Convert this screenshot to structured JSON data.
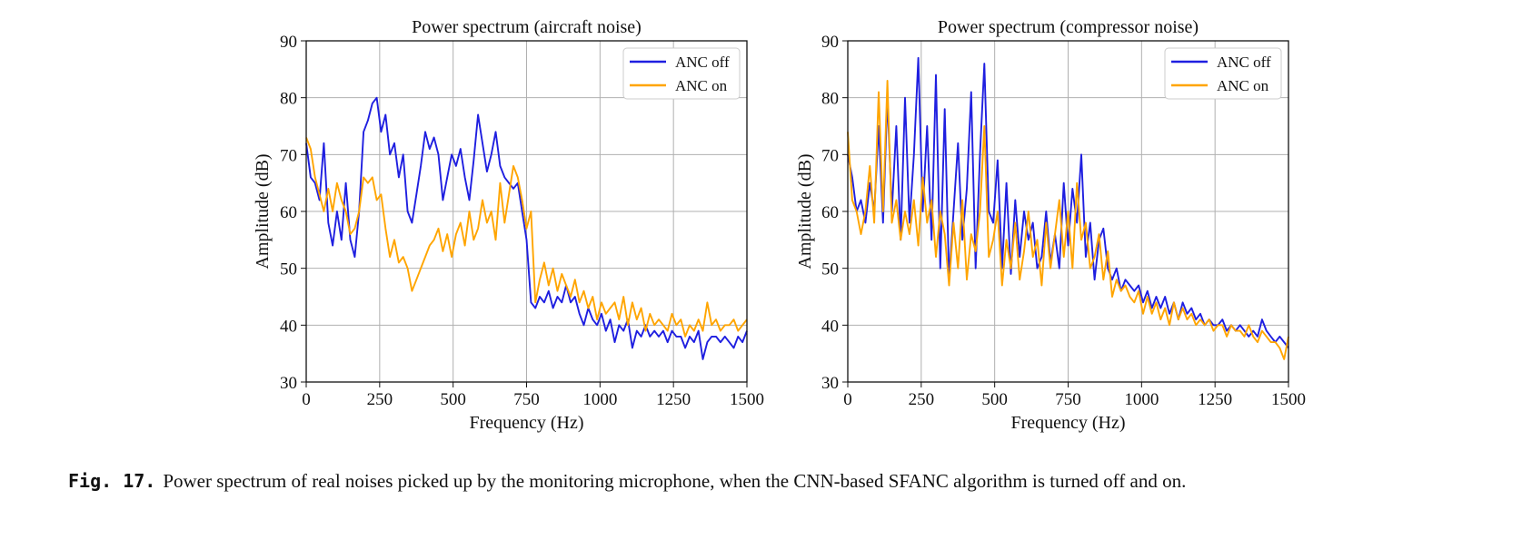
{
  "chart_data": [
    {
      "type": "line",
      "title": "Power spectrum (aircraft noise)",
      "xlabel": "Frequency (Hz)",
      "ylabel": "Amplitude (dB)",
      "xlim": [
        0,
        1500
      ],
      "ylim": [
        30,
        90
      ],
      "xticks": [
        "0",
        "250",
        "500",
        "750",
        "1000",
        "1250",
        "1500"
      ],
      "yticks": [
        "30",
        "40",
        "50",
        "60",
        "70",
        "80",
        "90"
      ],
      "grid": true,
      "legend": "top-right",
      "series": [
        {
          "name": "ANC off",
          "color": "#1f1fe0",
          "x": [
            0,
            15,
            30,
            45,
            60,
            75,
            90,
            105,
            120,
            135,
            150,
            165,
            180,
            195,
            210,
            225,
            240,
            255,
            270,
            285,
            300,
            315,
            330,
            345,
            360,
            375,
            390,
            405,
            420,
            435,
            450,
            465,
            480,
            495,
            510,
            525,
            540,
            555,
            570,
            585,
            600,
            615,
            630,
            645,
            660,
            675,
            690,
            705,
            720,
            735,
            750,
            765,
            780,
            795,
            810,
            825,
            840,
            855,
            870,
            885,
            900,
            915,
            930,
            945,
            960,
            975,
            990,
            1005,
            1020,
            1035,
            1050,
            1065,
            1080,
            1095,
            1110,
            1125,
            1140,
            1155,
            1170,
            1185,
            1200,
            1215,
            1230,
            1245,
            1260,
            1275,
            1290,
            1305,
            1320,
            1335,
            1350,
            1365,
            1380,
            1395,
            1410,
            1425,
            1440,
            1455,
            1470,
            1485,
            1500
          ],
          "values": [
            72,
            66,
            65,
            62,
            72,
            58,
            54,
            60,
            55,
            65,
            55,
            52,
            60,
            74,
            76,
            79,
            80,
            74,
            77,
            70,
            72,
            66,
            70,
            60,
            58,
            63,
            68,
            74,
            71,
            73,
            70,
            62,
            66,
            70,
            68,
            71,
            66,
            62,
            69,
            77,
            72,
            67,
            70,
            74,
            68,
            66,
            65,
            64,
            65,
            60,
            55,
            44,
            43,
            45,
            44,
            46,
            43,
            45,
            44,
            47,
            44,
            45,
            42,
            40,
            43,
            41,
            40,
            42,
            39,
            41,
            37,
            40,
            39,
            41,
            36,
            39,
            38,
            40,
            38,
            39,
            38,
            39,
            37,
            39,
            38,
            38,
            36,
            38,
            37,
            39,
            34,
            37,
            38,
            38,
            37,
            38,
            37,
            36,
            38,
            37,
            39
          ]
        },
        {
          "name": "ANC on",
          "color": "#ffa500",
          "x": [
            0,
            15,
            30,
            45,
            60,
            75,
            90,
            105,
            120,
            135,
            150,
            165,
            180,
            195,
            210,
            225,
            240,
            255,
            270,
            285,
            300,
            315,
            330,
            345,
            360,
            375,
            390,
            405,
            420,
            435,
            450,
            465,
            480,
            495,
            510,
            525,
            540,
            555,
            570,
            585,
            600,
            615,
            630,
            645,
            660,
            675,
            690,
            705,
            720,
            735,
            750,
            765,
            780,
            795,
            810,
            825,
            840,
            855,
            870,
            885,
            900,
            915,
            930,
            945,
            960,
            975,
            990,
            1005,
            1020,
            1035,
            1050,
            1065,
            1080,
            1095,
            1110,
            1125,
            1140,
            1155,
            1170,
            1185,
            1200,
            1215,
            1230,
            1245,
            1260,
            1275,
            1290,
            1305,
            1320,
            1335,
            1350,
            1365,
            1380,
            1395,
            1410,
            1425,
            1440,
            1455,
            1470,
            1485,
            1500
          ],
          "values": [
            73,
            71,
            66,
            63,
            60,
            64,
            60,
            65,
            62,
            60,
            56,
            57,
            60,
            66,
            65,
            66,
            62,
            63,
            57,
            52,
            55,
            51,
            52,
            50,
            46,
            48,
            50,
            52,
            54,
            55,
            57,
            53,
            56,
            52,
            56,
            58,
            54,
            60,
            55,
            57,
            62,
            58,
            60,
            55,
            65,
            58,
            63,
            68,
            66,
            62,
            57,
            60,
            44,
            48,
            51,
            47,
            50,
            46,
            49,
            47,
            45,
            48,
            44,
            46,
            43,
            45,
            41,
            44,
            42,
            43,
            44,
            41,
            45,
            40,
            44,
            41,
            43,
            39,
            42,
            40,
            41,
            40,
            39,
            42,
            40,
            41,
            38,
            40,
            39,
            41,
            39,
            44,
            40,
            41,
            39,
            40,
            40,
            41,
            39,
            40,
            41
          ]
        }
      ]
    },
    {
      "type": "line",
      "title": "Power spectrum (compressor noise)",
      "xlabel": "Frequency (Hz)",
      "ylabel": "Amplitude (dB)",
      "xlim": [
        0,
        1500
      ],
      "ylim": [
        30,
        90
      ],
      "xticks": [
        "0",
        "250",
        "500",
        "750",
        "1000",
        "1250",
        "1500"
      ],
      "yticks": [
        "30",
        "40",
        "50",
        "60",
        "70",
        "80",
        "90"
      ],
      "grid": true,
      "legend": "top-right",
      "series": [
        {
          "name": "ANC off",
          "color": "#1f1fe0",
          "x": [
            0,
            15,
            30,
            45,
            60,
            75,
            90,
            105,
            120,
            135,
            150,
            165,
            180,
            195,
            210,
            225,
            240,
            255,
            270,
            285,
            300,
            315,
            330,
            345,
            360,
            375,
            390,
            405,
            420,
            435,
            450,
            465,
            480,
            495,
            510,
            525,
            540,
            555,
            570,
            585,
            600,
            615,
            630,
            645,
            660,
            675,
            690,
            705,
            720,
            735,
            750,
            765,
            780,
            795,
            810,
            825,
            840,
            855,
            870,
            885,
            900,
            915,
            930,
            945,
            960,
            975,
            990,
            1005,
            1020,
            1035,
            1050,
            1065,
            1080,
            1095,
            1110,
            1125,
            1140,
            1155,
            1170,
            1185,
            1200,
            1215,
            1230,
            1245,
            1260,
            1275,
            1290,
            1305,
            1320,
            1335,
            1350,
            1365,
            1380,
            1395,
            1410,
            1425,
            1440,
            1455,
            1470,
            1485,
            1500
          ],
          "values": [
            70,
            66,
            60,
            62,
            58,
            65,
            60,
            75,
            58,
            80,
            60,
            75,
            55,
            80,
            58,
            70,
            87,
            60,
            75,
            55,
            84,
            50,
            78,
            48,
            60,
            72,
            55,
            64,
            81,
            50,
            70,
            86,
            60,
            58,
            69,
            50,
            65,
            49,
            62,
            52,
            60,
            55,
            58,
            50,
            52,
            60,
            51,
            56,
            50,
            65,
            54,
            64,
            58,
            70,
            52,
            58,
            48,
            55,
            57,
            50,
            48,
            50,
            46,
            48,
            47,
            46,
            47,
            44,
            46,
            43,
            45,
            43,
            45,
            42,
            44,
            41,
            44,
            42,
            43,
            41,
            42,
            40,
            41,
            40,
            40,
            41,
            39,
            40,
            39,
            40,
            39,
            38,
            39,
            38,
            41,
            39,
            38,
            37,
            38,
            37,
            36
          ]
        },
        {
          "name": "ANC on",
          "color": "#ffa500",
          "x": [
            0,
            15,
            30,
            45,
            60,
            75,
            90,
            105,
            120,
            135,
            150,
            165,
            180,
            195,
            210,
            225,
            240,
            255,
            270,
            285,
            300,
            315,
            330,
            345,
            360,
            375,
            390,
            405,
            420,
            435,
            450,
            465,
            480,
            495,
            510,
            525,
            540,
            555,
            570,
            585,
            600,
            615,
            630,
            645,
            660,
            675,
            690,
            705,
            720,
            735,
            750,
            765,
            780,
            795,
            810,
            825,
            840,
            855,
            870,
            885,
            900,
            915,
            930,
            945,
            960,
            975,
            990,
            1005,
            1020,
            1035,
            1050,
            1065,
            1080,
            1095,
            1110,
            1125,
            1140,
            1155,
            1170,
            1185,
            1200,
            1215,
            1230,
            1245,
            1260,
            1275,
            1290,
            1305,
            1320,
            1335,
            1350,
            1365,
            1380,
            1395,
            1410,
            1425,
            1440,
            1455,
            1470,
            1485,
            1500
          ],
          "values": [
            74,
            62,
            60,
            56,
            60,
            68,
            58,
            81,
            60,
            83,
            58,
            62,
            55,
            60,
            56,
            62,
            54,
            66,
            58,
            62,
            52,
            60,
            56,
            47,
            58,
            50,
            62,
            48,
            56,
            53,
            60,
            75,
            52,
            55,
            60,
            47,
            55,
            50,
            58,
            48,
            53,
            60,
            52,
            55,
            47,
            58,
            50,
            56,
            62,
            52,
            60,
            50,
            65,
            55,
            58,
            50,
            52,
            56,
            48,
            53,
            45,
            48,
            46,
            47,
            45,
            44,
            46,
            42,
            45,
            42,
            44,
            41,
            43,
            40,
            44,
            41,
            43,
            41,
            42,
            40,
            41,
            40,
            41,
            39,
            40,
            40,
            38,
            40,
            39,
            39,
            38,
            40,
            38,
            37,
            39,
            38,
            37,
            37,
            36,
            34,
            38
          ]
        }
      ]
    }
  ],
  "caption": {
    "label": "Fig. 17.",
    "text": "Power spectrum of real noises picked up by the monitoring microphone, when the CNN-based SFANC algorithm is turned off and on."
  }
}
